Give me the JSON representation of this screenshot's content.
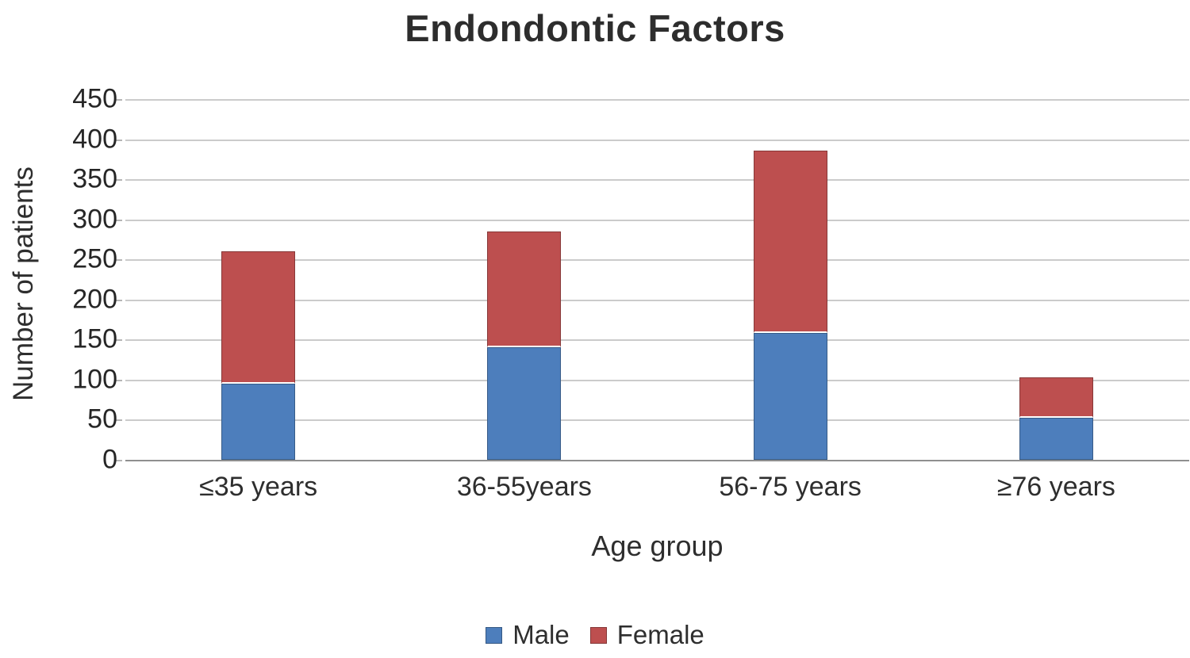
{
  "page": {
    "background": "#ffffff"
  },
  "chart_data": {
    "type": "bar",
    "stacked": true,
    "title": "Endondontic Factors",
    "xlabel": "Age group",
    "ylabel": "Number of patients",
    "ylim": [
      0,
      450
    ],
    "ytick_step": 50,
    "grid": "horizontal-only",
    "legend_position": "bottom-center",
    "categories": [
      "≤35 years",
      "36-55years",
      "56-75 years",
      "≥76 years"
    ],
    "series": [
      {
        "name": "Male",
        "color": "#4d7ebc",
        "values": [
          95,
          140,
          158,
          52
        ]
      },
      {
        "name": "Female",
        "color": "#bd4f4f",
        "values": [
          165,
          145,
          228,
          51
        ]
      }
    ],
    "colors": {
      "male_blue": "#4d7ebc",
      "female_red": "#bd4f4f",
      "gridline": "#cbcbcb",
      "axis_line": "#8f8f8f",
      "text": "#2e2e2e"
    }
  }
}
